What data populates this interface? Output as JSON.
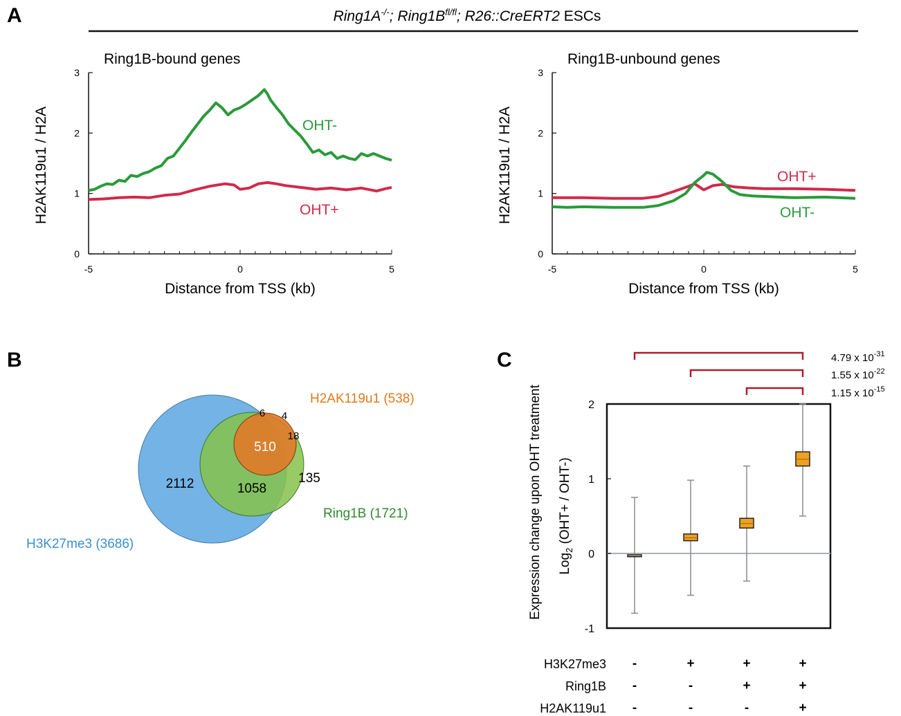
{
  "panels": {
    "A": "A",
    "B": "B",
    "C": "C"
  },
  "header": {
    "title_prefix": "Ring1A",
    "title_sup1": "-/-",
    "title_mid": "; Ring1B",
    "title_sup2": "fl/fl",
    "title_rest": "; R26::CreERT2",
    "title_suffix": " ESCs"
  },
  "chart_data": [
    {
      "type": "line",
      "title": "Ring1B-bound genes",
      "xlabel": "Distance from TSS (kb)",
      "ylabel": "H2AK119u1 / H2A",
      "xlim": [
        -5,
        5
      ],
      "ylim": [
        0,
        3
      ],
      "xticks": [
        "-5",
        "0",
        "5"
      ],
      "yticks": [
        "0",
        "1",
        "2",
        "3"
      ],
      "series": [
        {
          "name": "OHT-",
          "color": "#2a9a3a",
          "x": [
            -5,
            -4.8,
            -4.6,
            -4.4,
            -4.2,
            -4.0,
            -3.8,
            -3.6,
            -3.4,
            -3.2,
            -3.0,
            -2.8,
            -2.6,
            -2.4,
            -2.2,
            -2.0,
            -1.8,
            -1.6,
            -1.4,
            -1.2,
            -1.0,
            -0.8,
            -0.6,
            -0.4,
            -0.2,
            0.0,
            0.2,
            0.4,
            0.6,
            0.8,
            0.9,
            1.0,
            1.2,
            1.4,
            1.6,
            1.8,
            2.0,
            2.2,
            2.4,
            2.6,
            2.8,
            3.0,
            3.2,
            3.4,
            3.6,
            3.8,
            4.0,
            4.2,
            4.4,
            4.6,
            4.8,
            5.0
          ],
          "values": [
            1.05,
            1.07,
            1.12,
            1.16,
            1.15,
            1.22,
            1.2,
            1.3,
            1.28,
            1.33,
            1.36,
            1.42,
            1.46,
            1.58,
            1.62,
            1.75,
            1.88,
            2.02,
            2.15,
            2.28,
            2.38,
            2.5,
            2.42,
            2.3,
            2.38,
            2.42,
            2.48,
            2.55,
            2.62,
            2.72,
            2.65,
            2.55,
            2.42,
            2.3,
            2.15,
            2.05,
            1.95,
            1.82,
            1.68,
            1.72,
            1.64,
            1.68,
            1.58,
            1.62,
            1.58,
            1.56,
            1.66,
            1.62,
            1.66,
            1.62,
            1.58,
            1.55
          ]
        },
        {
          "name": "OHT+",
          "color": "#d12a4a",
          "x": [
            -5,
            -4.5,
            -4.0,
            -3.5,
            -3.0,
            -2.5,
            -2.0,
            -1.5,
            -1.0,
            -0.5,
            -0.2,
            0.0,
            0.3,
            0.6,
            0.9,
            1.2,
            1.5,
            2.0,
            2.5,
            3.0,
            3.5,
            4.0,
            4.5,
            4.8,
            5.0
          ],
          "values": [
            0.9,
            0.91,
            0.93,
            0.94,
            0.93,
            0.97,
            0.99,
            1.06,
            1.12,
            1.16,
            1.14,
            1.07,
            1.09,
            1.16,
            1.18,
            1.16,
            1.13,
            1.1,
            1.07,
            1.09,
            1.06,
            1.09,
            1.04,
            1.08,
            1.1
          ]
        }
      ]
    },
    {
      "type": "line",
      "title": "Ring1B-unbound genes",
      "xlabel": "Distance from TSS (kb)",
      "ylabel": "H2AK119u1 / H2A",
      "xlim": [
        -5,
        5
      ],
      "ylim": [
        0,
        3
      ],
      "xticks": [
        "-5",
        "0",
        "5"
      ],
      "yticks": [
        "0",
        "1",
        "2",
        "3"
      ],
      "series": [
        {
          "name": "OHT+",
          "color": "#d12a4a",
          "x": [
            -5,
            -4.0,
            -3.0,
            -2.0,
            -1.5,
            -1.0,
            -0.5,
            -0.3,
            0.0,
            0.3,
            0.6,
            1.0,
            1.5,
            2.0,
            3.0,
            4.0,
            5.0
          ],
          "values": [
            0.93,
            0.93,
            0.92,
            0.92,
            0.95,
            1.03,
            1.12,
            1.16,
            1.06,
            1.13,
            1.15,
            1.11,
            1.09,
            1.08,
            1.08,
            1.07,
            1.05
          ]
        },
        {
          "name": "OHT-",
          "color": "#2a9a3a",
          "x": [
            -5,
            -4.5,
            -4.0,
            -3.0,
            -2.0,
            -1.5,
            -1.0,
            -0.6,
            -0.3,
            0.0,
            0.1,
            0.3,
            0.6,
            0.9,
            1.2,
            1.6,
            2.0,
            3.0,
            4.0,
            5.0
          ],
          "values": [
            0.78,
            0.77,
            0.78,
            0.77,
            0.77,
            0.8,
            0.88,
            1.0,
            1.18,
            1.3,
            1.35,
            1.32,
            1.2,
            1.05,
            0.98,
            0.96,
            0.95,
            0.93,
            0.94,
            0.92
          ]
        }
      ]
    },
    {
      "type": "box",
      "xlabel": "",
      "ylabel_main": "Expression change upon OHT treatment",
      "ylabel_prefix": "Log",
      "ylabel_sub": "2",
      "ylabel_rest": " (OHT+ / OHT-)",
      "ylim": [
        -1,
        2
      ],
      "yticks": [
        "2",
        "1",
        "0",
        "-1"
      ],
      "groups": [
        {
          "min": -0.8,
          "q1": -0.04,
          "median": -0.02,
          "q3": -0.02,
          "max": 0.75,
          "color": "#8888aa"
        },
        {
          "min": -0.56,
          "q1": 0.17,
          "median": 0.21,
          "q3": 0.26,
          "max": 0.98,
          "color": "#f0a020"
        },
        {
          "min": -0.37,
          "q1": 0.34,
          "median": 0.4,
          "q3": 0.47,
          "max": 1.17,
          "color": "#f0a020"
        },
        {
          "min": 0.5,
          "q1": 1.17,
          "median": 1.26,
          "q3": 1.36,
          "max": 2.0,
          "color": "#f0a020"
        }
      ],
      "row_labels": [
        "H3K27me3",
        "Ring1B",
        "H2AK119u1"
      ],
      "row_marks": [
        [
          "-",
          "+",
          "+",
          "+"
        ],
        [
          "-",
          "-",
          "+",
          "+"
        ],
        [
          "-",
          "-",
          "-",
          "+"
        ]
      ],
      "significance": [
        {
          "from": 1,
          "to": 4,
          "base": "4.79 x 10",
          "exp": "-31"
        },
        {
          "from": 2,
          "to": 4,
          "base": "1.55 x 10",
          "exp": "-22"
        },
        {
          "from": 3,
          "to": 4,
          "base": "1.15 x 10",
          "exp": "-15"
        }
      ],
      "bracket_color": "#b01c2c"
    }
  ],
  "venn": {
    "sets": [
      {
        "label": "H3K27me3 (3686)",
        "color": "#5aa6e0",
        "text_color": "#3a8fd0"
      },
      {
        "label": "Ring1B (1721)",
        "color": "#86c24a",
        "text_color": "#2e8b2e"
      },
      {
        "label": "H2AK119u1 (538)",
        "color": "#e07a2a",
        "text_color": "#e07a1a"
      }
    ],
    "counts": {
      "h3_only": "2112",
      "h3_ring": "1058",
      "all_three": "510",
      "ring_only": "135",
      "h3_h2a": "6",
      "h2a_only": "4",
      "ring_h2a": "18"
    }
  }
}
